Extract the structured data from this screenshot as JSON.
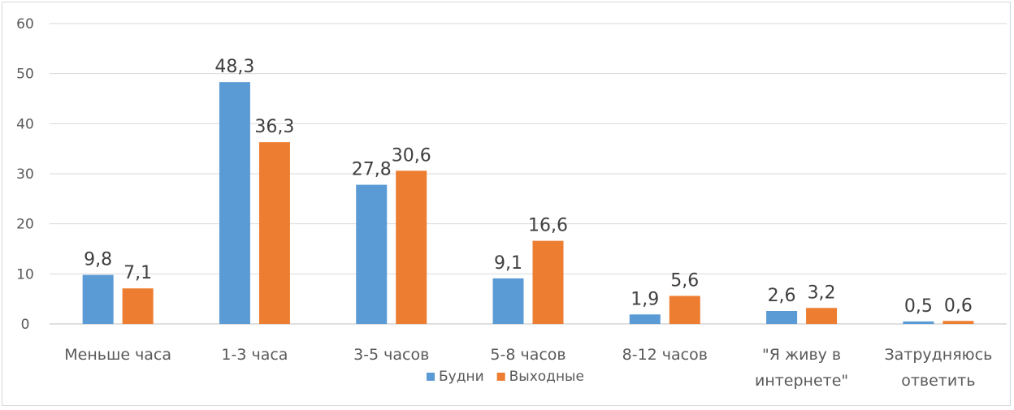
{
  "chart_data": {
    "type": "bar",
    "title": "",
    "xlabel": "",
    "ylabel": "",
    "ylim": [
      0,
      60
    ],
    "yticks": [
      0,
      10,
      20,
      30,
      40,
      50,
      60
    ],
    "grid": true,
    "legend_position": "bottom",
    "categories": [
      [
        "Меньше часа"
      ],
      [
        "1-3 часа"
      ],
      [
        "3-5 часов"
      ],
      [
        "5-8 часов"
      ],
      [
        "8-12 часов"
      ],
      [
        "\"Я живу в",
        "интернете\""
      ],
      [
        "Затрудняюсь",
        "ответить"
      ]
    ],
    "series": [
      {
        "name": "Будни",
        "color": "#5b9bd5",
        "values": [
          9.8,
          48.3,
          27.8,
          9.1,
          1.9,
          2.6,
          0.5
        ],
        "labels": [
          "9,8",
          "48,3",
          "27,8",
          "9,1",
          "1,9",
          "2,6",
          "0,5"
        ]
      },
      {
        "name": "Выходные",
        "color": "#ed7d31",
        "values": [
          7.1,
          36.3,
          30.6,
          16.6,
          5.6,
          3.2,
          0.6
        ],
        "labels": [
          "7,1",
          "36,3",
          "30,6",
          "16,6",
          "5,6",
          "3,2",
          "0,6"
        ]
      }
    ]
  }
}
